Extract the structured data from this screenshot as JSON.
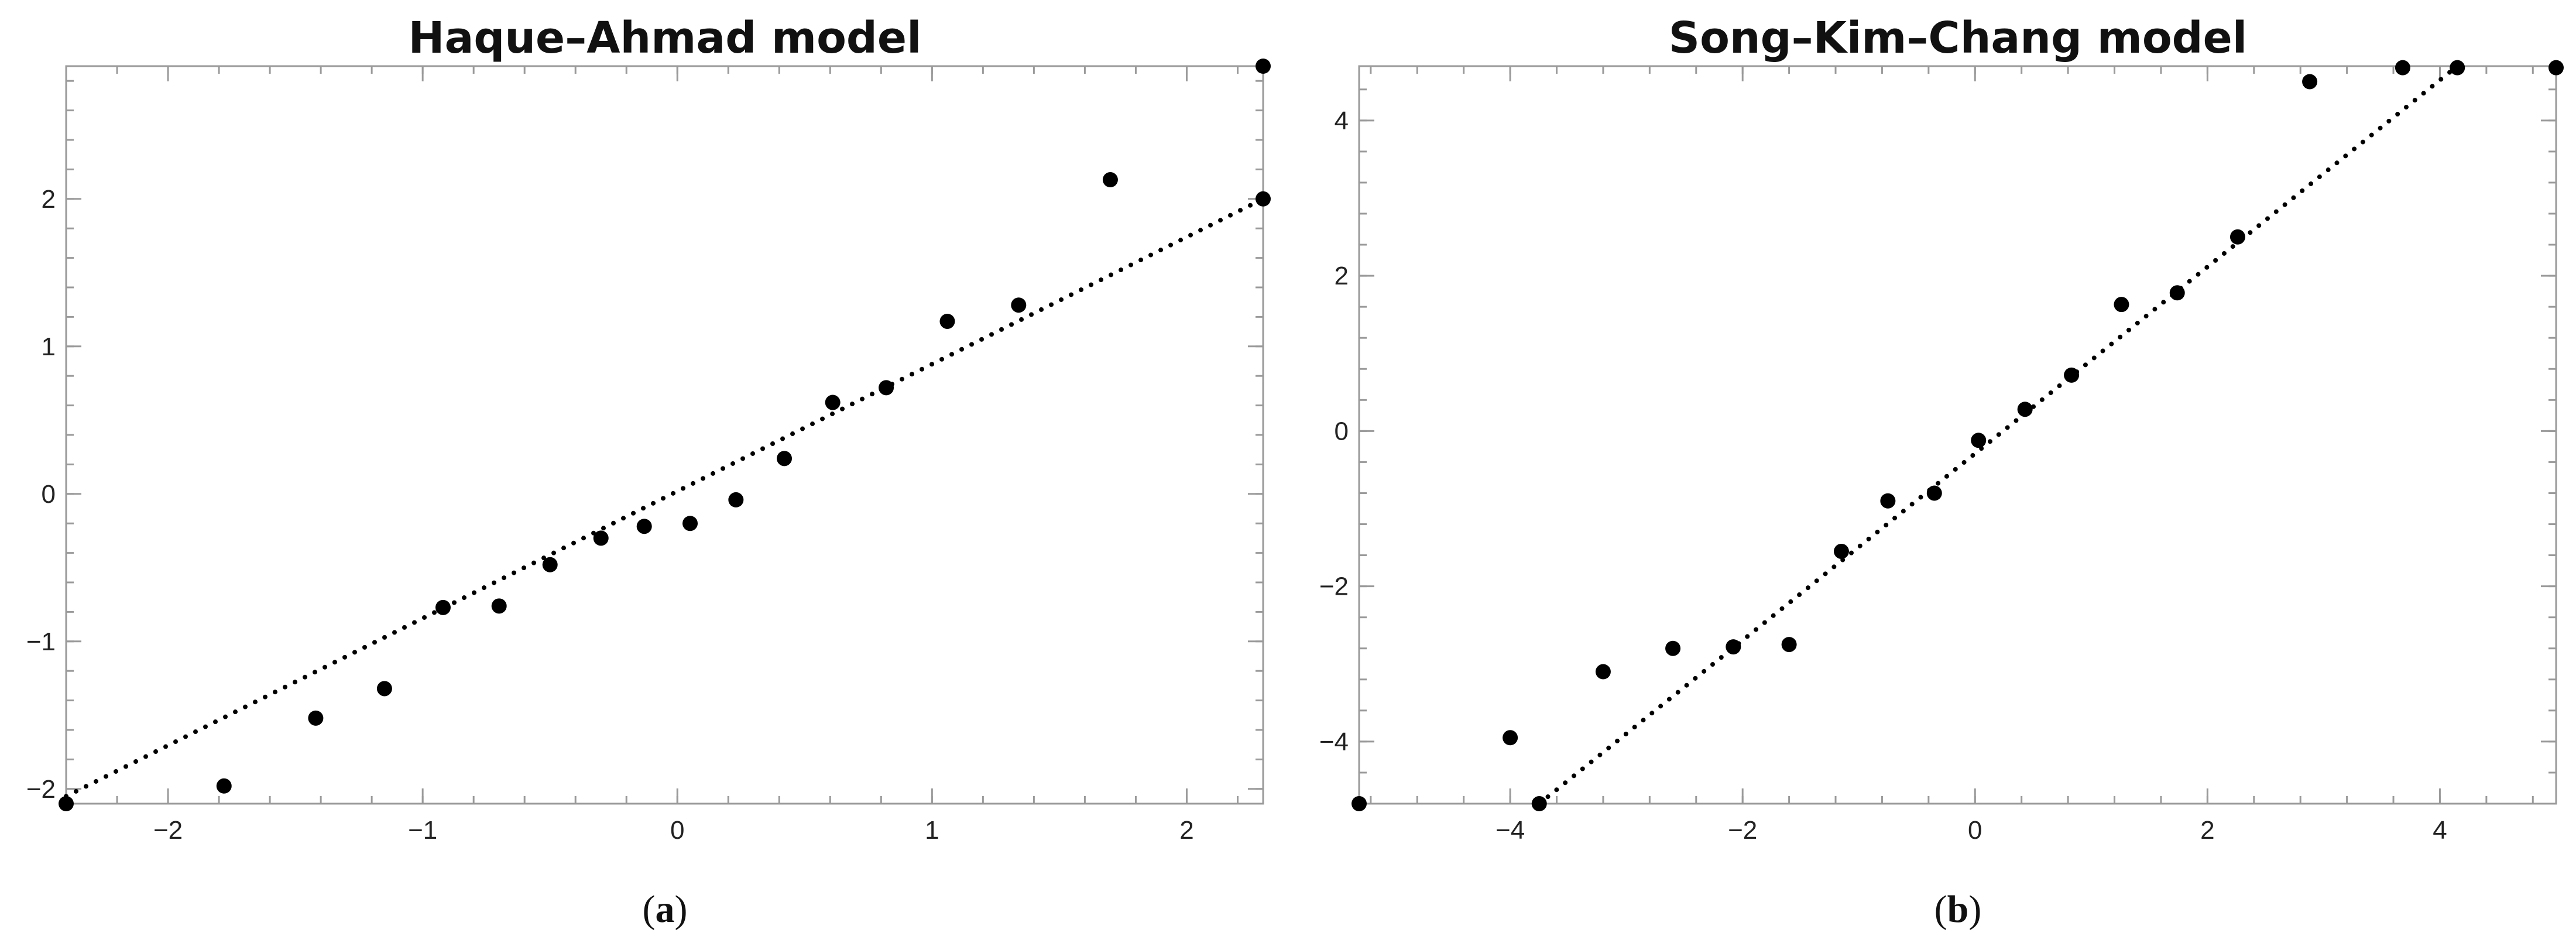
{
  "chart_data": [
    {
      "type": "scatter",
      "title": "Haque–Ahmad model",
      "caption_letter": "a",
      "xlabel": "",
      "ylabel": "",
      "xlim": [
        -2.4,
        2.3
      ],
      "ylim": [
        -2.1,
        2.9
      ],
      "x_ticks": [
        -2,
        -1,
        0,
        1,
        2
      ],
      "y_ticks": [
        -2,
        -1,
        0,
        1,
        2
      ],
      "grid": false,
      "reference_line": {
        "style": "dotted",
        "from": [
          -2.4,
          -2.05
        ],
        "to": [
          2.3,
          2.0
        ]
      },
      "series": [
        {
          "x": [
            -2.4,
            -1.78,
            -1.42,
            -1.15,
            -0.92,
            -0.7,
            -0.5,
            -0.3,
            -0.13,
            0.05,
            0.23,
            0.42,
            0.61,
            0.82,
            1.06,
            1.34,
            1.7,
            2.3,
            2.3
          ],
          "y": [
            -2.1,
            -1.98,
            -1.52,
            -1.32,
            -0.77,
            -0.76,
            -0.48,
            -0.3,
            -0.22,
            -0.2,
            -0.04,
            0.24,
            0.62,
            0.72,
            1.17,
            1.28,
            2.13,
            2.0,
            2.9
          ]
        }
      ]
    },
    {
      "type": "scatter",
      "title": "Song–Kim–Chang model",
      "caption_letter": "b",
      "xlabel": "",
      "ylabel": "",
      "xlim": [
        -5.3,
        5.0
      ],
      "ylim": [
        -4.8,
        4.7
      ],
      "x_ticks": [
        -4,
        -2,
        0,
        2,
        4
      ],
      "y_ticks": [
        -4,
        -2,
        0,
        2,
        4
      ],
      "grid": false,
      "reference_line": {
        "style": "dotted",
        "from": [
          -3.75,
          -4.8
        ],
        "to": [
          4.15,
          4.7
        ]
      },
      "series": [
        {
          "x": [
            -5.3,
            -4.0,
            -3.2,
            -2.6,
            -2.08,
            -1.6,
            -1.15,
            -0.75,
            -0.35,
            0.03,
            0.43,
            0.83,
            1.26,
            1.74,
            2.26,
            2.88,
            3.68,
            4.15,
            5.0,
            -3.75
          ],
          "y": [
            -4.8,
            -3.95,
            -3.1,
            -2.8,
            -2.78,
            -2.75,
            -1.55,
            -0.9,
            -0.8,
            -0.12,
            0.28,
            0.72,
            1.63,
            1.78,
            2.5,
            4.5,
            4.68,
            4.68,
            4.68,
            -4.8
          ]
        }
      ]
    }
  ]
}
